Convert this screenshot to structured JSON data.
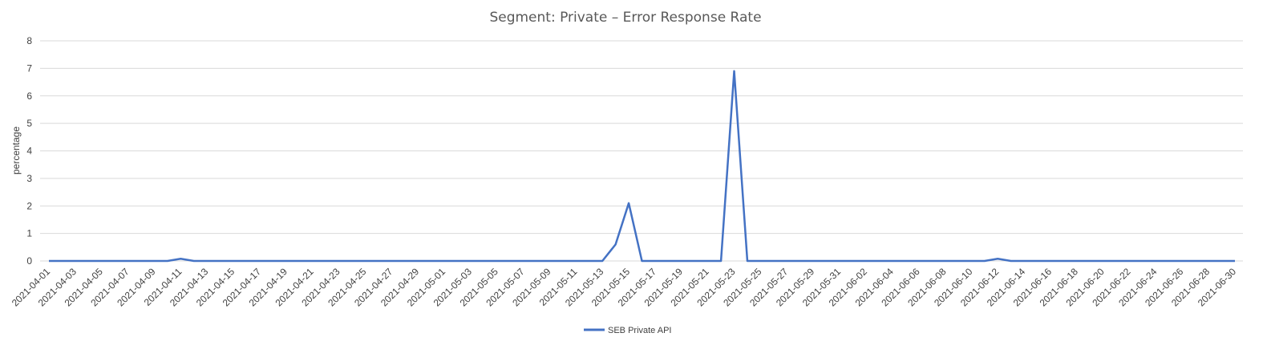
{
  "chart_data": {
    "type": "line",
    "title": "Segment: Private – Error Response Rate",
    "xlabel": "",
    "ylabel": "percentage",
    "ylim": [
      0,
      8
    ],
    "yticks": [
      0,
      1,
      2,
      3,
      4,
      5,
      6,
      7,
      8
    ],
    "grid": true,
    "legend_position": "bottom",
    "x": [
      "2021-04-01",
      "2021-04-02",
      "2021-04-03",
      "2021-04-04",
      "2021-04-05",
      "2021-04-06",
      "2021-04-07",
      "2021-04-08",
      "2021-04-09",
      "2021-04-10",
      "2021-04-11",
      "2021-04-12",
      "2021-04-13",
      "2021-04-14",
      "2021-04-15",
      "2021-04-16",
      "2021-04-17",
      "2021-04-18",
      "2021-04-19",
      "2021-04-20",
      "2021-04-21",
      "2021-04-22",
      "2021-04-23",
      "2021-04-24",
      "2021-04-25",
      "2021-04-26",
      "2021-04-27",
      "2021-04-28",
      "2021-04-29",
      "2021-04-30",
      "2021-05-01",
      "2021-05-02",
      "2021-05-03",
      "2021-05-04",
      "2021-05-05",
      "2021-05-06",
      "2021-05-07",
      "2021-05-08",
      "2021-05-09",
      "2021-05-10",
      "2021-05-11",
      "2021-05-12",
      "2021-05-13",
      "2021-05-14",
      "2021-05-15",
      "2021-05-16",
      "2021-05-17",
      "2021-05-18",
      "2021-05-19",
      "2021-05-20",
      "2021-05-21",
      "2021-05-22",
      "2021-05-23",
      "2021-05-24",
      "2021-05-25",
      "2021-05-26",
      "2021-05-27",
      "2021-05-28",
      "2021-05-29",
      "2021-05-30",
      "2021-05-31",
      "2021-06-01",
      "2021-06-02",
      "2021-06-03",
      "2021-06-04",
      "2021-06-05",
      "2021-06-06",
      "2021-06-07",
      "2021-06-08",
      "2021-06-09",
      "2021-06-10",
      "2021-06-11",
      "2021-06-12",
      "2021-06-13",
      "2021-06-14",
      "2021-06-15",
      "2021-06-16",
      "2021-06-17",
      "2021-06-18",
      "2021-06-19",
      "2021-06-20",
      "2021-06-21",
      "2021-06-22",
      "2021-06-23",
      "2021-06-24",
      "2021-06-25",
      "2021-06-26",
      "2021-06-27",
      "2021-06-28",
      "2021-06-29",
      "2021-06-30"
    ],
    "xticks": [
      "2021-04-01",
      "2021-04-03",
      "2021-04-05",
      "2021-04-07",
      "2021-04-09",
      "2021-04-11",
      "2021-04-13",
      "2021-04-15",
      "2021-04-17",
      "2021-04-19",
      "2021-04-21",
      "2021-04-23",
      "2021-04-25",
      "2021-04-27",
      "2021-04-29",
      "2021-05-01",
      "2021-05-03",
      "2021-05-05",
      "2021-05-07",
      "2021-05-09",
      "2021-05-11",
      "2021-05-13",
      "2021-05-15",
      "2021-05-17",
      "2021-05-19",
      "2021-05-21",
      "2021-05-23",
      "2021-05-25",
      "2021-05-27",
      "2021-05-29",
      "2021-05-31",
      "2021-06-02",
      "2021-06-04",
      "2021-06-06",
      "2021-06-08",
      "2021-06-10",
      "2021-06-12",
      "2021-06-14",
      "2021-06-16",
      "2021-06-18",
      "2021-06-20",
      "2021-06-22",
      "2021-06-24",
      "2021-06-26",
      "2021-06-28",
      "2021-06-30"
    ],
    "series": [
      {
        "name": "SEB Private API",
        "color": "#4472c4",
        "values": [
          0,
          0,
          0,
          0,
          0,
          0,
          0,
          0,
          0,
          0,
          0.08,
          0,
          0,
          0,
          0,
          0,
          0,
          0,
          0,
          0,
          0,
          0,
          0,
          0,
          0,
          0,
          0,
          0,
          0,
          0,
          0,
          0,
          0,
          0,
          0,
          0,
          0,
          0,
          0,
          0,
          0,
          0,
          0,
          0.6,
          2.1,
          0,
          0,
          0,
          0,
          0,
          0,
          0,
          6.9,
          0,
          0,
          0,
          0,
          0,
          0,
          0,
          0,
          0,
          0,
          0,
          0,
          0,
          0,
          0,
          0,
          0,
          0,
          0,
          0.08,
          0,
          0,
          0,
          0,
          0,
          0,
          0,
          0,
          0,
          0,
          0,
          0,
          0,
          0,
          0,
          0,
          0,
          0
        ]
      }
    ]
  }
}
